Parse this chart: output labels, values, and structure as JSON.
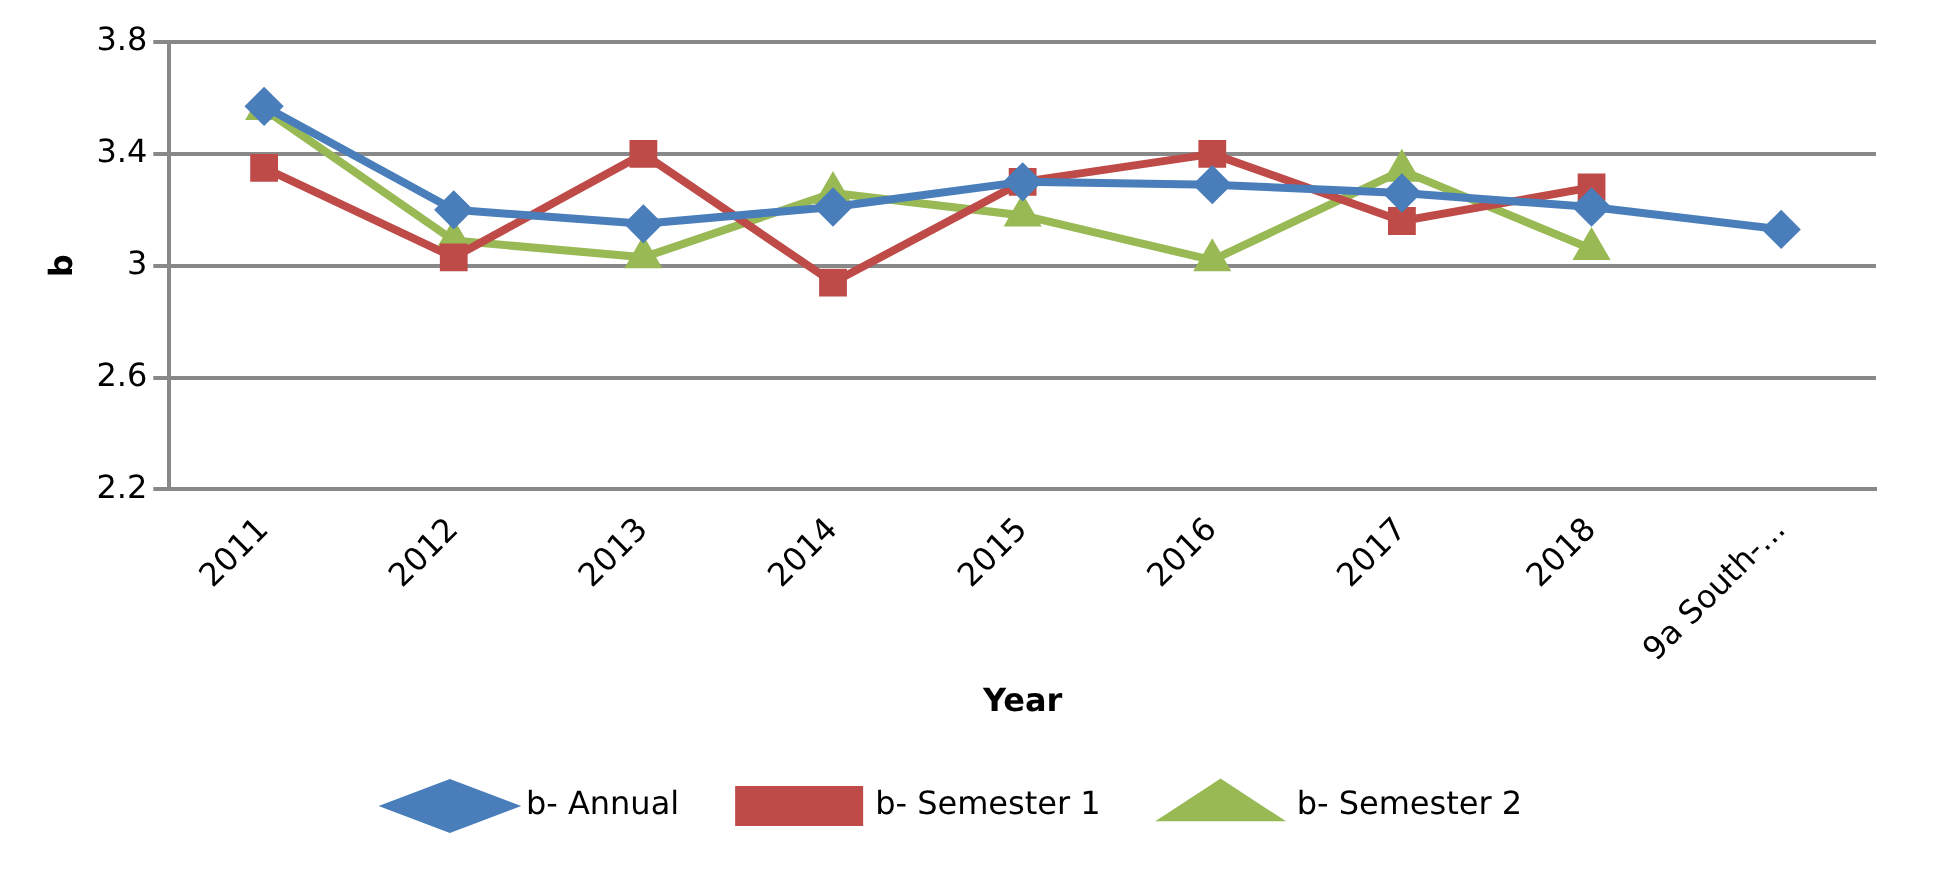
{
  "chart_data": {
    "type": "line",
    "xlabel": "Year",
    "ylabel": "b",
    "categories": [
      "2011",
      "2012",
      "2013",
      "2014",
      "2015",
      "2016",
      "2017",
      "2018",
      "9a South-..."
    ],
    "series": [
      {
        "name": "b- Annual",
        "color": "#4a7ebb",
        "marker": "diamond",
        "values": [
          3.57,
          3.2,
          3.15,
          3.21,
          3.3,
          3.29,
          3.26,
          3.21,
          3.13
        ]
      },
      {
        "name": "b- Semester 1",
        "color": "#be4b48",
        "marker": "square",
        "values": [
          3.35,
          3.03,
          3.4,
          2.94,
          3.3,
          3.4,
          3.16,
          3.28,
          null
        ]
      },
      {
        "name": "b- Semester 2",
        "color": "#98b954",
        "marker": "triangle",
        "values": [
          3.56,
          3.09,
          3.03,
          3.26,
          3.18,
          3.02,
          3.34,
          3.06,
          null
        ]
      }
    ],
    "ylim": [
      2.2,
      3.8
    ],
    "yticks": [
      2.2,
      2.6,
      3,
      3.4,
      3.8
    ],
    "grid": "y",
    "legend": "bottom"
  }
}
